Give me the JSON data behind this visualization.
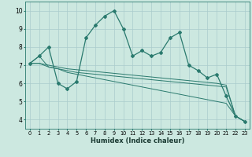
{
  "title": "",
  "xlabel": "Humidex (Indice chaleur)",
  "bg_color": "#cce8e0",
  "grid_color": "#aacccc",
  "line_color": "#2a7a6e",
  "xlim": [
    -0.5,
    23.5
  ],
  "ylim": [
    3.5,
    10.5
  ],
  "xticks": [
    0,
    1,
    2,
    3,
    4,
    5,
    6,
    7,
    8,
    9,
    10,
    11,
    12,
    13,
    14,
    15,
    16,
    17,
    18,
    19,
    20,
    21,
    22,
    23
  ],
  "yticks": [
    4,
    5,
    6,
    7,
    8,
    9,
    10
  ],
  "series": [
    [
      7.1,
      7.5,
      8.0,
      6.0,
      5.7,
      6.1,
      8.5,
      9.2,
      9.7,
      10.0,
      9.0,
      7.5,
      7.8,
      7.5,
      7.7,
      8.5,
      8.8,
      7.0,
      6.7,
      6.3,
      6.5,
      5.3,
      4.2,
      3.9
    ],
    [
      7.1,
      7.5,
      6.9,
      6.8,
      6.6,
      6.5,
      6.4,
      6.3,
      6.2,
      6.1,
      6.0,
      5.9,
      5.8,
      5.7,
      5.6,
      5.5,
      5.4,
      5.3,
      5.2,
      5.1,
      5.0,
      4.9,
      4.2,
      3.9
    ],
    [
      7.1,
      7.1,
      6.9,
      6.8,
      6.7,
      6.6,
      6.55,
      6.5,
      6.45,
      6.4,
      6.35,
      6.3,
      6.25,
      6.2,
      6.15,
      6.1,
      6.05,
      6.0,
      5.95,
      5.9,
      5.85,
      5.8,
      4.2,
      3.9
    ],
    [
      7.1,
      7.1,
      7.0,
      6.9,
      6.8,
      6.75,
      6.7,
      6.65,
      6.6,
      6.55,
      6.5,
      6.45,
      6.4,
      6.35,
      6.3,
      6.25,
      6.2,
      6.15,
      6.1,
      6.05,
      6.0,
      5.9,
      4.2,
      3.9
    ]
  ]
}
